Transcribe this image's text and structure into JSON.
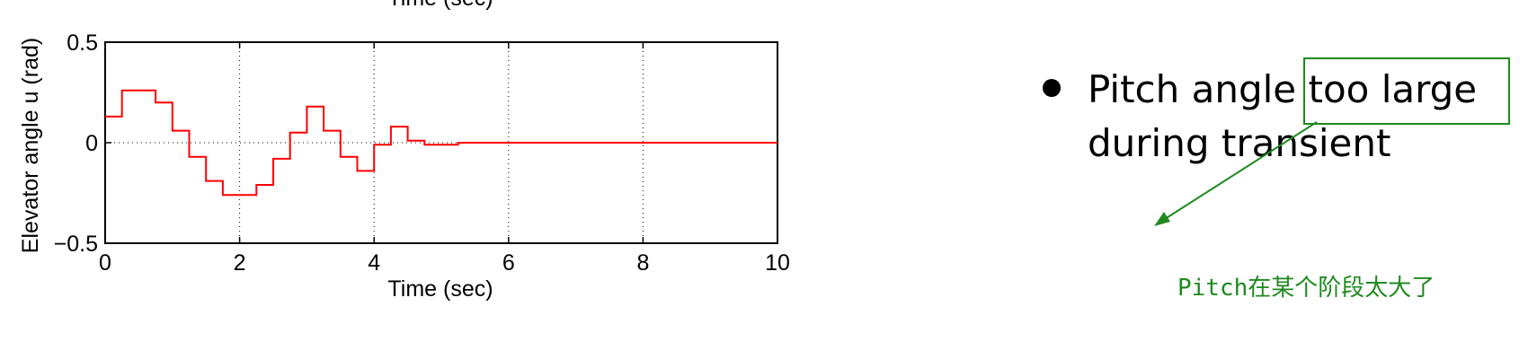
{
  "chart_data": {
    "type": "line",
    "top_xlabel_partial": "Time (sec)",
    "xlabel": "Time (sec)",
    "ylabel": "Elevator angle u (rad)",
    "xlim": [
      0,
      10
    ],
    "ylim": [
      -0.5,
      0.5
    ],
    "xticks": [
      "0",
      "2",
      "4",
      "6",
      "8",
      "10"
    ],
    "yticks": [
      "0.5",
      "0",
      "−0.5"
    ],
    "grid": "dotted",
    "series": [
      {
        "style": "step",
        "color": "#ff0000",
        "x": [
          0,
          0.25,
          0.25,
          0.75,
          0.75,
          1.0,
          1.0,
          1.25,
          1.25,
          1.5,
          1.5,
          1.75,
          1.75,
          2.25,
          2.25,
          2.5,
          2.5,
          2.75,
          2.75,
          3.0,
          3.0,
          3.25,
          3.25,
          3.5,
          3.5,
          3.75,
          3.75,
          4.0,
          4.0,
          4.25,
          4.25,
          4.5,
          4.5,
          4.75,
          4.75,
          5.25,
          5.25,
          10
        ],
        "y": [
          0.13,
          0.13,
          0.26,
          0.26,
          0.2,
          0.2,
          0.06,
          0.06,
          -0.07,
          -0.07,
          -0.19,
          -0.19,
          -0.26,
          -0.26,
          -0.21,
          -0.21,
          -0.08,
          -0.08,
          0.05,
          0.05,
          0.18,
          0.18,
          0.06,
          0.06,
          -0.07,
          -0.07,
          -0.14,
          -0.14,
          -0.01,
          -0.01,
          0.08,
          0.08,
          0.01,
          0.01,
          -0.01,
          -0.01,
          0.0,
          0.0
        ]
      }
    ]
  },
  "bullet": {
    "line1_before": "Pitch angle ",
    "line1_highlight": "too large",
    "line2": "during transient"
  },
  "annotation": {
    "text": "Pitch在某个阶段太大了",
    "color": "#1f8a1f"
  }
}
